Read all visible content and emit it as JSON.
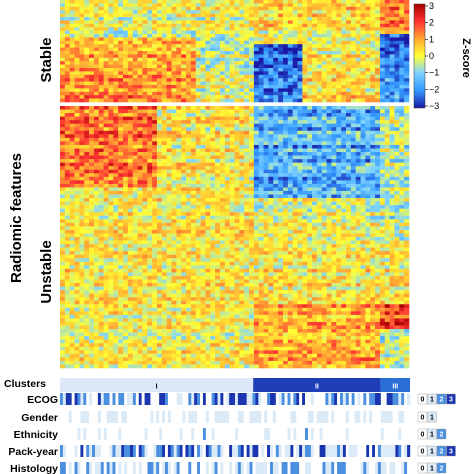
{
  "chart_data": {
    "type": "heatmap",
    "ylabel": "Radiomic features",
    "row_groups": [
      {
        "label": "Stable",
        "id": "stable"
      },
      {
        "label": "Unstable",
        "id": "unstable"
      }
    ],
    "colorbar": {
      "title": "Z-score",
      "range": [
        -3,
        3
      ],
      "ticks": [
        "3",
        "2",
        "1",
        "0",
        "−1",
        "−2",
        "−3"
      ],
      "colors": [
        "#1a1aa6",
        "#3399ff",
        "#7fd4ff",
        "#ffff33",
        "#ffaa33",
        "#ff3333",
        "#aa0000"
      ]
    },
    "clusters": {
      "label": "Clusters",
      "items": [
        {
          "name": "I",
          "fraction": 0.552,
          "color": "#dce8f7",
          "text_color": "#000000"
        },
        {
          "name": "II",
          "fraction": 0.364,
          "color": "#1f3fb8",
          "text_color": "#ffffff"
        },
        {
          "name": "III",
          "fraction": 0.084,
          "color": "#2b6fd6",
          "text_color": "#ffffff"
        }
      ]
    },
    "annotations": [
      {
        "label": "ECOG",
        "levels": [
          "0",
          "1",
          "2",
          "3"
        ],
        "level_colors": [
          "#ffffff",
          "#dbeaf7",
          "#4a8fe0",
          "#1a35b0"
        ]
      },
      {
        "label": "Gender",
        "levels": [
          "0",
          "1"
        ],
        "level_colors": [
          "#ffffff",
          "#dbeaf7"
        ]
      },
      {
        "label": "Ethnicity",
        "levels": [
          "0",
          "1",
          "2"
        ],
        "level_colors": [
          "#ffffff",
          "#dbeaf7",
          "#4a8fe0"
        ]
      },
      {
        "label": "Pack-year",
        "levels": [
          "0",
          "1",
          "2",
          "3"
        ],
        "level_colors": [
          "#ffffff",
          "#dbeaf7",
          "#4a8fe0",
          "#1a35b0"
        ]
      },
      {
        "label": "Histology",
        "levels": [
          "0",
          "1",
          "2"
        ],
        "level_colors": [
          "#ffffff",
          "#dbeaf7",
          "#4a8fe0"
        ]
      }
    ]
  }
}
